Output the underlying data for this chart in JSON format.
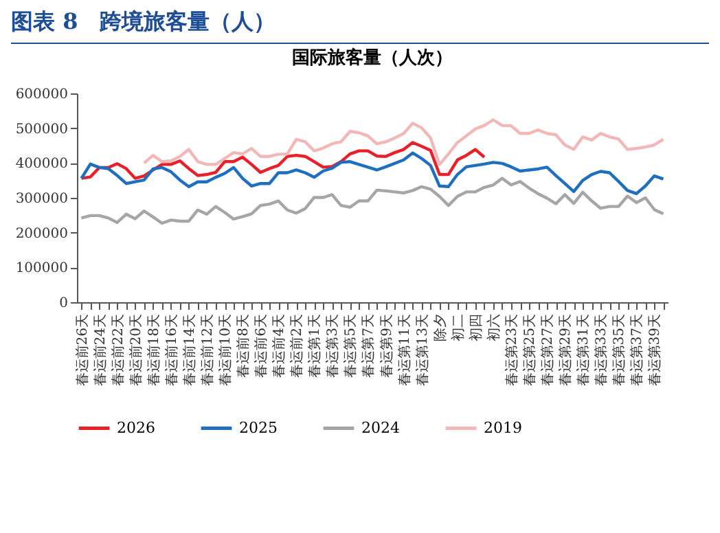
{
  "chart_data": {
    "type": "line",
    "title": "图表 8　跨境旅客量（人）",
    "subtitle": "国际旅客量（人次）",
    "categories": [
      "春运前26天",
      null,
      "春运前24天",
      null,
      "春运前22天",
      null,
      "春运前20天",
      null,
      "春运前18天",
      null,
      "春运前16天",
      null,
      "春运前14天",
      null,
      "春运前12天",
      null,
      "春运前10天",
      null,
      "春运前8天",
      null,
      "春运前6天",
      null,
      "春运前4天",
      null,
      "春运前2天",
      null,
      "春运第1天",
      null,
      "春运第3天",
      null,
      "春运第5天",
      null,
      "春运第7天",
      null,
      "春运第9天",
      null,
      "春运第11天",
      null,
      "春运第13天",
      null,
      "除夕",
      null,
      "初二",
      null,
      "初四",
      null,
      "初六",
      null,
      "春运第23天",
      null,
      "春运第25天",
      null,
      "春运第27天",
      null,
      "春运第29天",
      null,
      "春运第31天",
      null,
      "春运第33天",
      null,
      "春运第35天",
      null,
      "春运第37天",
      null,
      "春运第39天",
      null
    ],
    "series": [
      {
        "name": "2026",
        "color": "#e8202a",
        "values": [
          356000,
          360000,
          387000,
          387000,
          398000,
          384000,
          356000,
          363000,
          380000,
          396000,
          396000,
          406000,
          384000,
          364000,
          367000,
          373000,
          404000,
          404000,
          417000,
          396000,
          373000,
          384000,
          393000,
          419000,
          422000,
          419000,
          404000,
          388000,
          390000,
          404000,
          426000,
          435000,
          435000,
          420000,
          419000,
          430000,
          439000,
          459000,
          448000,
          436000,
          367000,
          367000,
          409000,
          422000,
          439000,
          417000,
          null,
          null,
          null,
          null,
          null,
          null,
          null,
          null,
          null,
          null,
          null,
          null,
          null,
          null,
          null,
          null,
          null,
          null,
          null,
          null
        ]
      },
      {
        "name": "2025",
        "color": "#1f6fc0",
        "values": [
          356000,
          397000,
          387000,
          384000,
          364000,
          341000,
          346000,
          351000,
          383000,
          387000,
          375000,
          351000,
          332000,
          346000,
          346000,
          359000,
          370000,
          387000,
          356000,
          334000,
          341000,
          341000,
          372000,
          372000,
          380000,
          372000,
          359000,
          377000,
          385000,
          402000,
          404000,
          396000,
          388000,
          380000,
          389000,
          399000,
          409000,
          429000,
          413000,
          393000,
          334000,
          332000,
          367000,
          389000,
          393000,
          397000,
          402000,
          399000,
          389000,
          377000,
          380000,
          383000,
          388000,
          364000,
          341000,
          318000,
          350000,
          367000,
          376000,
          372000,
          347000,
          321000,
          312000,
          334000,
          363000,
          354000
        ]
      },
      {
        "name": "2024",
        "color": "#a6a6a6",
        "values": [
          242000,
          249000,
          249000,
          242000,
          229000,
          253000,
          240000,
          262000,
          245000,
          227000,
          236000,
          233000,
          233000,
          265000,
          253000,
          275000,
          258000,
          239000,
          246000,
          254000,
          278000,
          282000,
          291000,
          265000,
          256000,
          269000,
          301000,
          301000,
          309000,
          278000,
          273000,
          291000,
          291000,
          322000,
          320000,
          317000,
          314000,
          321000,
          332000,
          325000,
          304000,
          278000,
          304000,
          317000,
          317000,
          330000,
          337000,
          356000,
          337000,
          347000,
          328000,
          312000,
          299000,
          283000,
          309000,
          284000,
          316000,
          291000,
          270000,
          275000,
          275000,
          305000,
          286000,
          300000,
          266000,
          254000
        ]
      },
      {
        "name": "2019",
        "color": "#f2b8b8",
        "values": [
          null,
          null,
          null,
          null,
          null,
          null,
          null,
          400000,
          422000,
          404000,
          406000,
          419000,
          439000,
          404000,
          396000,
          396000,
          413000,
          430000,
          426000,
          442000,
          419000,
          419000,
          425000,
          426000,
          468000,
          461000,
          435000,
          443000,
          455000,
          461000,
          491000,
          487000,
          478000,
          455000,
          461000,
          472000,
          485000,
          514000,
          501000,
          472000,
          396000,
          426000,
          459000,
          478000,
          498000,
          508000,
          524000,
          508000,
          507000,
          485000,
          485000,
          495000,
          485000,
          481000,
          452000,
          439000,
          475000,
          466000,
          485000,
          475000,
          469000,
          439000,
          442000,
          446000,
          452000,
          468000
        ]
      }
    ],
    "ylim": [
      0,
      600000
    ],
    "yticks": [
      0,
      100000,
      200000,
      300000,
      400000,
      500000,
      600000
    ],
    "legend": "bottom"
  }
}
